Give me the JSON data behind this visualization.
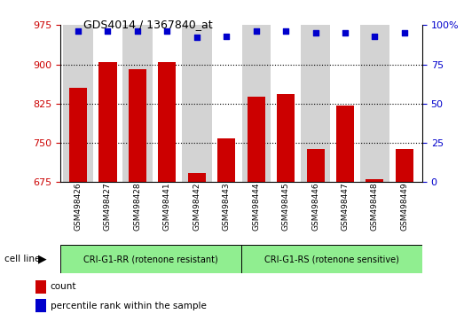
{
  "title": "GDS4014 / 1367840_at",
  "samples": [
    "GSM498426",
    "GSM498427",
    "GSM498428",
    "GSM498441",
    "GSM498442",
    "GSM498443",
    "GSM498444",
    "GSM498445",
    "GSM498446",
    "GSM498447",
    "GSM498448",
    "GSM498449"
  ],
  "bar_values": [
    855,
    905,
    890,
    905,
    693,
    758,
    838,
    843,
    738,
    822,
    680,
    738
  ],
  "dot_values_pct": [
    96,
    96,
    96,
    96,
    92,
    93,
    96,
    96,
    95,
    95,
    93,
    95
  ],
  "bar_color": "#cc0000",
  "dot_color": "#0000cc",
  "ylim_left": [
    675,
    975
  ],
  "ylim_right": [
    0,
    100
  ],
  "yticks_left": [
    675,
    750,
    825,
    900,
    975
  ],
  "yticks_right": [
    0,
    25,
    50,
    75,
    100
  ],
  "group1_label": "CRI-G1-RR (rotenone resistant)",
  "group2_label": "CRI-G1-RS (rotenone sensitive)",
  "group1_count": 6,
  "group2_count": 6,
  "group_color": "#90ee90",
  "cell_line_label": "cell line",
  "legend_count": "count",
  "legend_pct": "percentile rank within the sample",
  "col_colors": [
    "#d3d3d3",
    "#ffffff"
  ],
  "grid_yticks": [
    750,
    825,
    900
  ],
  "bar_width": 0.6
}
